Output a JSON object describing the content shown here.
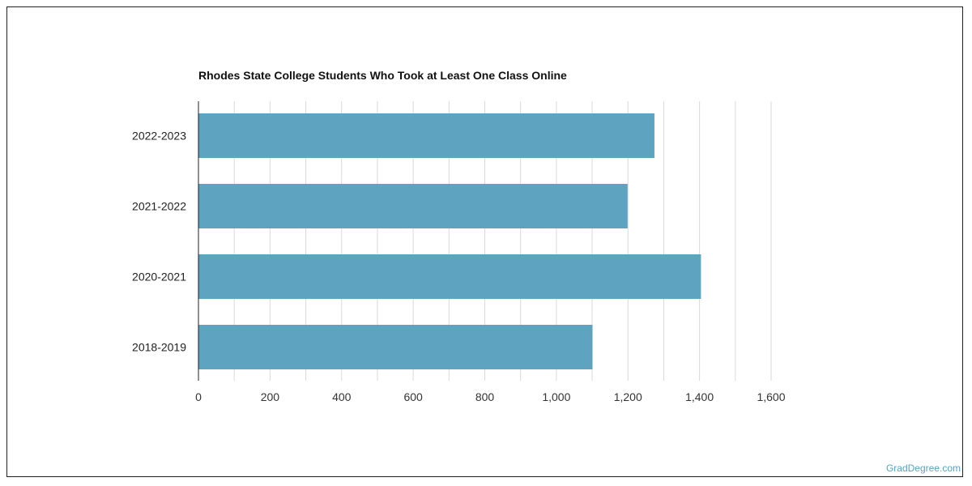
{
  "chart_data": {
    "type": "bar",
    "orientation": "horizontal",
    "title": "Rhodes State College Students Who Took at Least One Class Online",
    "categories": [
      "2022-2023",
      "2021-2022",
      "2020-2021",
      "2018-2019"
    ],
    "values": [
      1274,
      1199,
      1404,
      1101
    ],
    "xlim": [
      0,
      1600
    ],
    "xticks": [
      "0",
      "200",
      "400",
      "600",
      "800",
      "1,000",
      "1,200",
      "1,400",
      "1,600"
    ],
    "xlabel": "",
    "ylabel": "",
    "grid": true,
    "bar_color": "#5ea3bf"
  },
  "watermark": "GradDegree.com"
}
